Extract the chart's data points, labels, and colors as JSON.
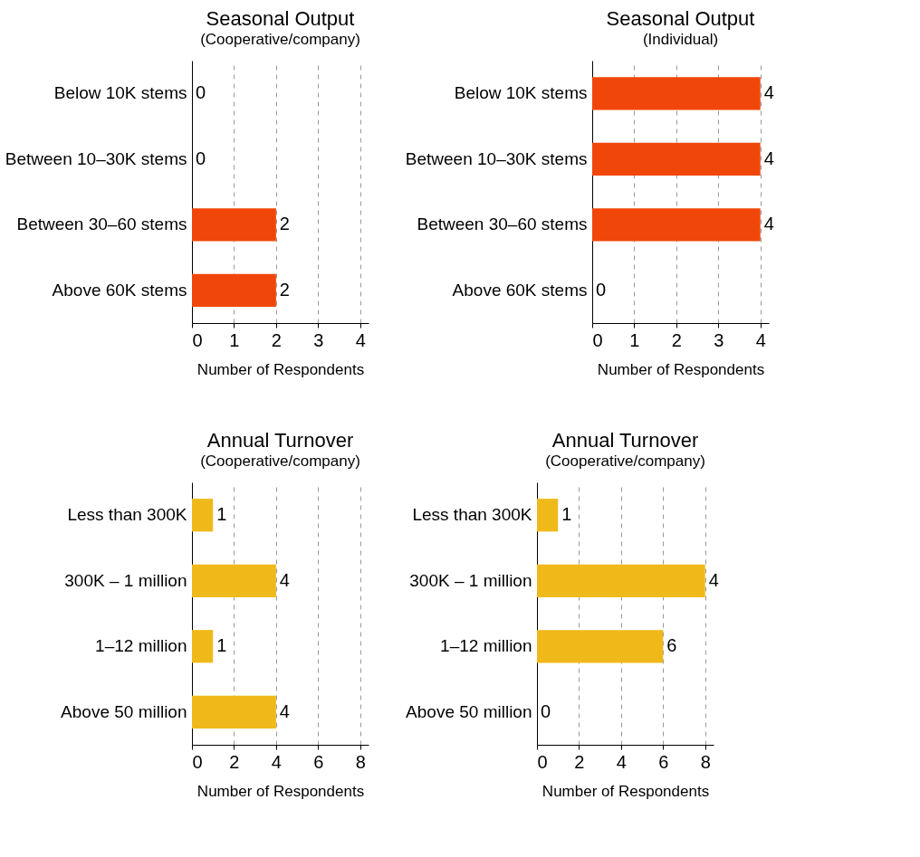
{
  "chart_data": [
    {
      "type": "bar",
      "orientation": "horizontal",
      "title": "Seasonal Output",
      "subtitle": "(Cooperative/company)",
      "xlabel": "Number of Respondents",
      "categories": [
        "Below 10K stems",
        "Between 10–30K stems",
        "Between 30–60 stems",
        "Above 60K stems"
      ],
      "values": [
        0,
        0,
        2,
        2
      ],
      "color": "#f0460a",
      "xlim": [
        0,
        4.2
      ],
      "xticks": [
        0,
        1,
        2,
        3,
        4
      ],
      "grid": "x",
      "data_labels": true
    },
    {
      "type": "bar",
      "orientation": "horizontal",
      "title": "Seasonal Output",
      "subtitle": "(Individual)",
      "xlabel": "Number of Respondents",
      "categories": [
        "Below 10K stems",
        "Between 10–30K stems",
        "Between 30–60 stems",
        "Above 60K stems"
      ],
      "values": [
        4,
        4,
        4,
        0
      ],
      "color": "#f0460a",
      "xlim": [
        0,
        4.2
      ],
      "xticks": [
        0,
        1,
        2,
        3,
        4
      ],
      "grid": "x",
      "data_labels": true
    },
    {
      "type": "bar",
      "orientation": "horizontal",
      "title": "Annual Turnover",
      "subtitle": "(Cooperative/company)",
      "xlabel": "Number of Respondents",
      "categories": [
        "Less than 300K",
        "300K – 1 million",
        "1–12 million",
        "Above 50 million"
      ],
      "values": [
        1,
        4,
        1,
        4
      ],
      "color": "#f0b91a",
      "xlim": [
        0,
        8.4
      ],
      "xticks": [
        0,
        2,
        4,
        6,
        8
      ],
      "grid": "x",
      "data_labels": true
    },
    {
      "type": "bar",
      "orientation": "horizontal",
      "title": "Annual Turnover",
      "subtitle": "(Cooperative/company)",
      "xlabel": "Number of Respondents",
      "categories": [
        "Less than 300K",
        "300K – 1 million",
        "1–12 million",
        "Above 50 million"
      ],
      "values": [
        1,
        8,
        6,
        0
      ],
      "value_labels": [
        "1",
        null,
        "6",
        "0"
      ],
      "annotations": [
        {
          "text": "4",
          "x": 8,
          "y": "300K – 1 million"
        }
      ],
      "color": "#f0b91a",
      "xlim": [
        0,
        8.4
      ],
      "xticks": [
        0,
        2,
        4,
        6,
        8
      ],
      "grid": "x"
    }
  ]
}
